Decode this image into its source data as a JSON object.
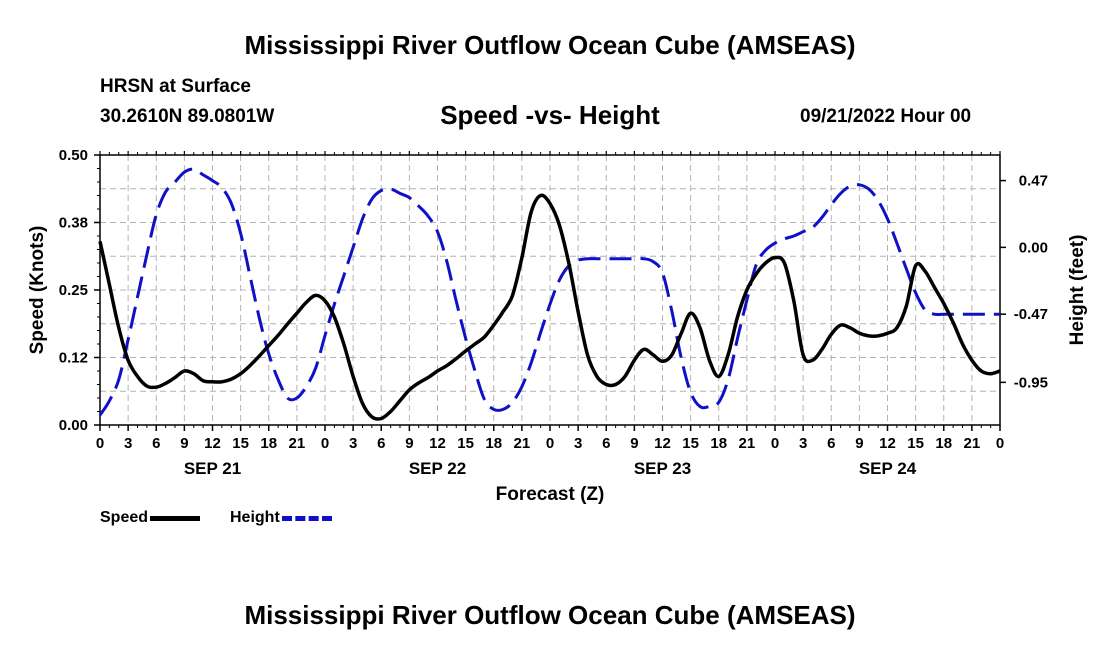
{
  "header": {
    "title": "Mississippi River Outflow Ocean Cube (AMSEAS)",
    "location_label": "HRSN at Surface",
    "coordinates": "30.2610N  89.0801W",
    "chart_title": "Speed -vs- Height",
    "datetime": "09/21/2022 Hour 00"
  },
  "footer": {
    "title": "Mississippi River Outflow Ocean Cube (AMSEAS)"
  },
  "chart_data": {
    "type": "line",
    "title": "Speed -vs- Height",
    "xlabel": "Forecast (Z)",
    "ylabel": "Speed (Knots)",
    "y2label": "Height (feet)",
    "xlim": [
      0,
      96
    ],
    "ylim": [
      0,
      0.5
    ],
    "y2lim": [
      -1.25,
      0.65
    ],
    "x_tick_values": [
      0,
      3,
      6,
      9,
      12,
      15,
      18,
      21,
      24,
      27,
      30,
      33,
      36,
      39,
      42,
      45,
      48,
      51,
      54,
      57,
      60,
      63,
      66,
      69,
      72,
      75,
      78,
      81,
      84,
      87,
      90,
      93,
      96
    ],
    "x_tick_labels": [
      "0",
      "3",
      "6",
      "9",
      "12",
      "15",
      "18",
      "21",
      "0",
      "3",
      "6",
      "9",
      "12",
      "15",
      "18",
      "21",
      "0",
      "3",
      "6",
      "9",
      "12",
      "15",
      "18",
      "21",
      "0",
      "3",
      "6",
      "9",
      "12",
      "15",
      "18",
      "21",
      "0"
    ],
    "day_labels": [
      {
        "x": 12,
        "label": "SEP 21"
      },
      {
        "x": 36,
        "label": "SEP 22"
      },
      {
        "x": 60,
        "label": "SEP 23"
      },
      {
        "x": 84,
        "label": "SEP 24"
      }
    ],
    "y_ticks": [
      {
        "value": 0.0,
        "label": "0.00"
      },
      {
        "value": 0.125,
        "label": "0.12"
      },
      {
        "value": 0.25,
        "label": "0.25"
      },
      {
        "value": 0.375,
        "label": "0.38"
      },
      {
        "value": 0.5,
        "label": "0.50"
      }
    ],
    "y2_ticks": [
      {
        "value": 0.47,
        "label": "0.47"
      },
      {
        "value": 0.0,
        "label": "0.00"
      },
      {
        "value": -0.47,
        "label": "-0.47"
      },
      {
        "value": -0.95,
        "label": "-0.95"
      }
    ],
    "grid": true,
    "legend_position": "bottom-left",
    "series": [
      {
        "name": "Speed",
        "axis": "left",
        "color": "#000000",
        "dash": "solid",
        "x": [
          0,
          1,
          2,
          3,
          4,
          5,
          6,
          7,
          8,
          9,
          10,
          11,
          12,
          13,
          14,
          15,
          16,
          17,
          18,
          19,
          20,
          21,
          22,
          23,
          24,
          25,
          26,
          27,
          28,
          29,
          30,
          31,
          32,
          33,
          34,
          35,
          36,
          37,
          38,
          39,
          40,
          41,
          42,
          43,
          44,
          45,
          46,
          47,
          48,
          49,
          50,
          51,
          52,
          53,
          54,
          55,
          56,
          57,
          58,
          59,
          60,
          61,
          62,
          63,
          64,
          65,
          66,
          67,
          68,
          69,
          70,
          71,
          72,
          73,
          74,
          75,
          76,
          77,
          78,
          79,
          80,
          81,
          82,
          83,
          84,
          85,
          86,
          87,
          88,
          89,
          90,
          91,
          92,
          93,
          94,
          95,
          96
        ],
        "values": [
          0.34,
          0.26,
          0.18,
          0.12,
          0.09,
          0.072,
          0.07,
          0.077,
          0.088,
          0.1,
          0.095,
          0.082,
          0.08,
          0.08,
          0.085,
          0.095,
          0.11,
          0.128,
          0.147,
          0.166,
          0.187,
          0.207,
          0.227,
          0.24,
          0.23,
          0.2,
          0.15,
          0.09,
          0.04,
          0.015,
          0.012,
          0.025,
          0.045,
          0.065,
          0.078,
          0.088,
          0.1,
          0.11,
          0.123,
          0.137,
          0.15,
          0.163,
          0.185,
          0.21,
          0.24,
          0.31,
          0.395,
          0.425,
          0.41,
          0.37,
          0.3,
          0.21,
          0.13,
          0.09,
          0.075,
          0.075,
          0.09,
          0.12,
          0.14,
          0.13,
          0.118,
          0.13,
          0.17,
          0.207,
          0.18,
          0.12,
          0.09,
          0.13,
          0.2,
          0.25,
          0.28,
          0.3,
          0.31,
          0.3,
          0.23,
          0.13,
          0.12,
          0.14,
          0.168,
          0.185,
          0.18,
          0.17,
          0.165,
          0.165,
          0.17,
          0.18,
          0.22,
          0.295,
          0.285,
          0.255,
          0.225,
          0.19,
          0.15,
          0.12,
          0.1,
          0.095,
          0.1
        ]
      },
      {
        "name": "Height",
        "axis": "right",
        "color": "#1010c8",
        "dash": "dashed",
        "x": [
          0,
          1,
          2,
          3,
          4,
          5,
          6,
          7,
          8,
          9,
          10,
          11,
          12,
          13,
          14,
          15,
          16,
          17,
          18,
          19,
          20,
          21,
          22,
          23,
          24,
          25,
          26,
          27,
          28,
          29,
          30,
          31,
          32,
          33,
          34,
          35,
          36,
          37,
          38,
          39,
          40,
          41,
          42,
          43,
          44,
          45,
          46,
          47,
          48,
          49,
          50,
          51,
          52,
          53,
          54,
          55,
          56,
          57,
          58,
          59,
          60,
          61,
          62,
          63,
          64,
          65,
          66,
          67,
          68,
          69,
          70,
          71,
          72,
          73,
          74,
          75,
          76,
          77,
          78,
          79,
          80,
          81,
          82,
          83,
          84,
          85,
          86,
          87,
          88,
          89,
          90,
          91,
          92,
          93,
          94,
          95,
          96
        ],
        "values": [
          -1.18,
          -1.08,
          -0.93,
          -0.65,
          -0.35,
          -0.05,
          0.23,
          0.39,
          0.46,
          0.53,
          0.55,
          0.51,
          0.47,
          0.42,
          0.31,
          0.1,
          -0.2,
          -0.5,
          -0.75,
          -0.93,
          -1.06,
          -1.06,
          -0.98,
          -0.85,
          -0.62,
          -0.4,
          -0.2,
          0.0,
          0.2,
          0.34,
          0.4,
          0.41,
          0.38,
          0.35,
          0.29,
          0.22,
          0.11,
          -0.1,
          -0.38,
          -0.64,
          -0.87,
          -1.07,
          -1.14,
          -1.14,
          -1.09,
          -0.98,
          -0.81,
          -0.6,
          -0.4,
          -0.23,
          -0.13,
          -0.09,
          -0.08,
          -0.08,
          -0.08,
          -0.08,
          -0.08,
          -0.08,
          -0.08,
          -0.1,
          -0.18,
          -0.45,
          -0.78,
          -1.02,
          -1.12,
          -1.12,
          -1.09,
          -0.93,
          -0.64,
          -0.37,
          -0.12,
          -0.02,
          0.03,
          0.06,
          0.08,
          0.11,
          0.14,
          0.21,
          0.3,
          0.38,
          0.43,
          0.44,
          0.41,
          0.33,
          0.2,
          0.03,
          -0.15,
          -0.32,
          -0.44,
          -0.47,
          -0.47,
          -0.47,
          -0.47,
          -0.47,
          -0.47,
          -0.47,
          -0.47
        ]
      }
    ]
  }
}
